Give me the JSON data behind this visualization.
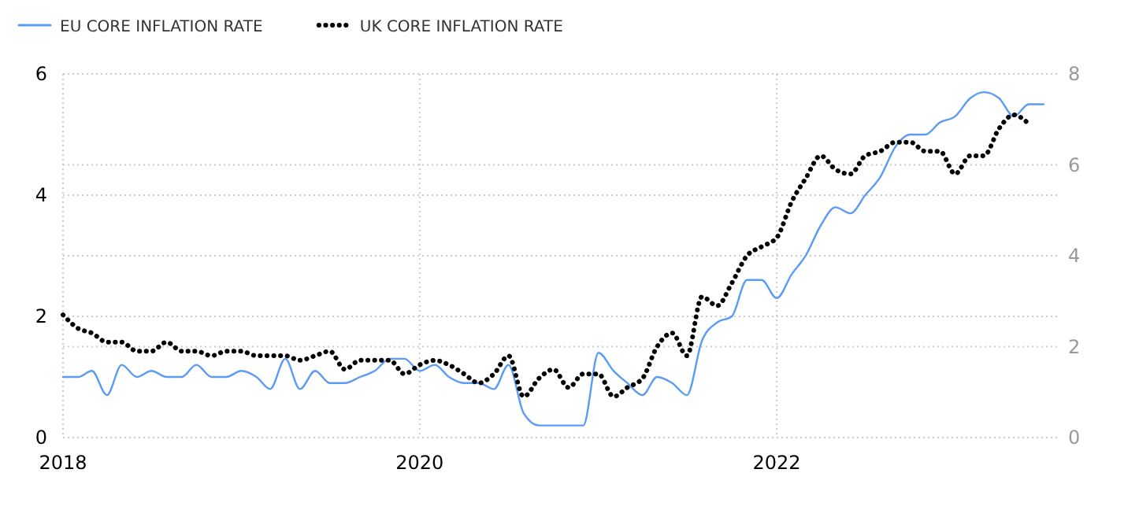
{
  "chart_data": {
    "type": "line",
    "x": [
      "2018-01",
      "2018-02",
      "2018-03",
      "2018-04",
      "2018-05",
      "2018-06",
      "2018-07",
      "2018-08",
      "2018-09",
      "2018-10",
      "2018-11",
      "2018-12",
      "2019-01",
      "2019-02",
      "2019-03",
      "2019-04",
      "2019-05",
      "2019-06",
      "2019-07",
      "2019-08",
      "2019-09",
      "2019-10",
      "2019-11",
      "2019-12",
      "2020-01",
      "2020-02",
      "2020-03",
      "2020-04",
      "2020-05",
      "2020-06",
      "2020-07",
      "2020-08",
      "2020-09",
      "2020-10",
      "2020-11",
      "2020-12",
      "2021-01",
      "2021-02",
      "2021-03",
      "2021-04",
      "2021-05",
      "2021-06",
      "2021-07",
      "2021-08",
      "2021-09",
      "2021-10",
      "2021-11",
      "2021-12",
      "2022-01",
      "2022-02",
      "2022-03",
      "2022-04",
      "2022-05",
      "2022-06",
      "2022-07",
      "2022-08",
      "2022-09",
      "2022-10",
      "2022-11",
      "2022-12",
      "2023-01",
      "2023-02",
      "2023-03",
      "2023-04",
      "2023-05",
      "2023-06",
      "2023-07"
    ],
    "series": [
      {
        "name": "EU CORE INFLATION RATE",
        "color": "#5b9bf5",
        "line_style": "solid",
        "axis": "y",
        "values": [
          1.0,
          1.0,
          1.1,
          0.7,
          1.2,
          1.0,
          1.1,
          1.0,
          1.0,
          1.2,
          1.0,
          1.0,
          1.1,
          1.0,
          0.8,
          1.3,
          0.8,
          1.1,
          0.9,
          0.9,
          1.0,
          1.1,
          1.3,
          1.3,
          1.1,
          1.2,
          1.0,
          0.9,
          0.9,
          0.8,
          1.2,
          0.4,
          0.2,
          0.2,
          0.2,
          0.2,
          1.4,
          1.1,
          0.9,
          0.7,
          1.0,
          0.9,
          0.7,
          1.6,
          1.9,
          2.0,
          2.6,
          2.6,
          2.3,
          2.7,
          3.0,
          3.5,
          3.8,
          3.7,
          4.0,
          4.3,
          4.8,
          5.0,
          5.0,
          5.2,
          5.3,
          5.6,
          5.7,
          5.6,
          5.3,
          5.5,
          5.5
        ]
      },
      {
        "name": "UK CORE INFLATION RATE",
        "color": "#000000",
        "line_style": "dotted",
        "axis": "y2",
        "values": [
          2.7,
          2.4,
          2.3,
          2.1,
          2.1,
          1.9,
          1.9,
          2.1,
          1.9,
          1.9,
          1.8,
          1.9,
          1.9,
          1.8,
          1.8,
          1.8,
          1.7,
          1.8,
          1.9,
          1.5,
          1.7,
          1.7,
          1.7,
          1.4,
          1.6,
          1.7,
          1.6,
          1.4,
          1.2,
          1.4,
          1.8,
          0.9,
          1.3,
          1.5,
          1.1,
          1.4,
          1.4,
          0.9,
          1.1,
          1.3,
          2.0,
          2.3,
          1.8,
          3.1,
          2.9,
          3.4,
          4.0,
          4.2,
          4.4,
          5.2,
          5.7,
          6.2,
          5.9,
          5.8,
          6.2,
          6.3,
          6.5,
          6.5,
          6.3,
          6.3,
          5.8,
          6.2,
          6.2,
          6.8,
          7.1,
          6.9,
          null
        ]
      }
    ],
    "xlim": [
      "2018-01",
      "2023-08"
    ],
    "xticks": [
      {
        "value": "2018-01",
        "label": "2018"
      },
      {
        "value": "2020-01",
        "label": "2020"
      },
      {
        "value": "2022-01",
        "label": "2022"
      }
    ],
    "ylim": [
      0,
      6
    ],
    "yticks": [
      0,
      2,
      4,
      6
    ],
    "y2lim": [
      0,
      8
    ],
    "y2ticks": [
      0,
      2,
      4,
      6,
      8
    ],
    "grid": true,
    "legend": "top left"
  }
}
